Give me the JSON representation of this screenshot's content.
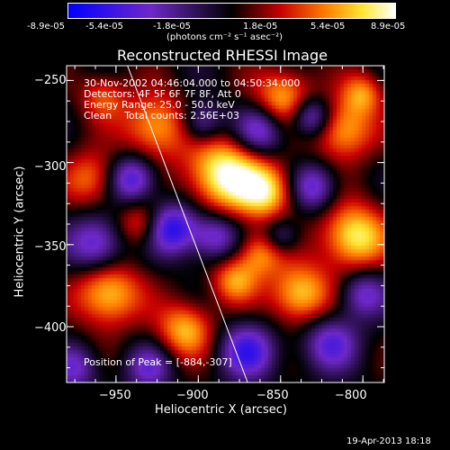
{
  "colorbar": {
    "ticks": [
      "-8.9e-05",
      "-5.4e-05",
      "-1.8e-05",
      "1.8e-05",
      "5.4e-05",
      "8.9e-05"
    ],
    "unit_label": "(photons cm⁻² s⁻¹ asec⁻²)",
    "vmin": -8.9e-05,
    "vmax": 8.9e-05
  },
  "title": "Reconstructed RHESSI Image",
  "info": {
    "time_range": "30-Nov-2002 04:46:04.000 to 04:50:34.000",
    "detectors": "Detectors: 4F 5F 6F 7F 8F, Att 0",
    "energy": "Energy Range: 25.0 - 50.0 keV",
    "clean": "Clean    Total counts: 2.56E+03",
    "peak": "Position of Peak = [-884,-307]"
  },
  "footer": {
    "date": "19-Apr-2013 18:18"
  },
  "chart_data": {
    "type": "heatmap",
    "title": "Reconstructed RHESSI Image",
    "xlabel": "Heliocentric X (arcsec)",
    "ylabel": "Heliocentric Y (arcsec)",
    "xlim": [
      -980,
      -787
    ],
    "ylim": [
      -434,
      -241
    ],
    "xticks": [
      -950,
      -900,
      -850,
      -800
    ],
    "yticks": [
      -250,
      -300,
      -350,
      -400
    ],
    "xtick_labels": [
      "−950",
      "−900",
      "−850",
      "−800"
    ],
    "ytick_labels": [
      "−250",
      "−300",
      "−350",
      "−400"
    ],
    "colormap": "blue-purple-black-red-yellow-white",
    "peak": {
      "x": -884,
      "y": -307
    },
    "limb_line": [
      [
        -943,
        -241
      ],
      [
        -870,
        -434
      ]
    ],
    "blobs": [
      {
        "x": -884,
        "y": -307,
        "r": 16,
        "v": 1.0
      },
      {
        "x": -848,
        "y": -262,
        "r": 13,
        "v": 0.75
      },
      {
        "x": -812,
        "y": -280,
        "r": 13,
        "v": 0.72
      },
      {
        "x": -926,
        "y": -278,
        "r": 14,
        "v": 0.7
      },
      {
        "x": -965,
        "y": -310,
        "r": 12,
        "v": 0.55
      },
      {
        "x": -858,
        "y": -318,
        "r": 12,
        "v": 0.75
      },
      {
        "x": -805,
        "y": -345,
        "r": 14,
        "v": 0.9
      },
      {
        "x": -838,
        "y": -380,
        "r": 13,
        "v": 0.8
      },
      {
        "x": -955,
        "y": -380,
        "r": 14,
        "v": 0.8
      },
      {
        "x": -908,
        "y": -402,
        "r": 12,
        "v": 0.7
      },
      {
        "x": -878,
        "y": -372,
        "r": 10,
        "v": 0.6
      },
      {
        "x": -935,
        "y": -338,
        "r": 10,
        "v": 0.5
      },
      {
        "x": -862,
        "y": -355,
        "r": 10,
        "v": 0.6
      },
      {
        "x": -800,
        "y": -258,
        "r": 9,
        "v": 0.55
      },
      {
        "x": -958,
        "y": -260,
        "r": 10,
        "v": 0.45
      },
      {
        "x": -940,
        "y": -310,
        "r": 10,
        "v": -0.75
      },
      {
        "x": -862,
        "y": -280,
        "r": 11,
        "v": -0.7
      },
      {
        "x": -832,
        "y": -272,
        "r": 9,
        "v": -0.8
      },
      {
        "x": -898,
        "y": -276,
        "r": 9,
        "v": -0.55
      },
      {
        "x": -916,
        "y": -340,
        "r": 11,
        "v": -0.85
      },
      {
        "x": -962,
        "y": -350,
        "r": 12,
        "v": -0.7
      },
      {
        "x": -890,
        "y": -345,
        "r": 10,
        "v": -0.6
      },
      {
        "x": -870,
        "y": -415,
        "r": 12,
        "v": -0.7
      },
      {
        "x": -820,
        "y": -410,
        "r": 12,
        "v": -0.6
      },
      {
        "x": -830,
        "y": -315,
        "r": 10,
        "v": -0.6
      },
      {
        "x": -800,
        "y": -380,
        "r": 10,
        "v": -0.55
      },
      {
        "x": -930,
        "y": -425,
        "r": 10,
        "v": -0.5
      },
      {
        "x": -975,
        "y": -425,
        "r": 10,
        "v": -0.5
      },
      {
        "x": -850,
        "y": -345,
        "r": 8,
        "v": -0.45
      }
    ]
  }
}
